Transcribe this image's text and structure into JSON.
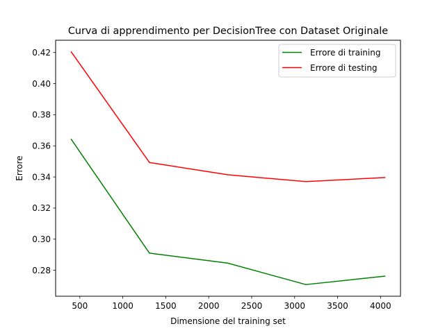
{
  "chart_data": {
    "type": "line",
    "title": "Curva di apprendimento per DecisionTree con Dataset Originale",
    "xlabel": "Dimensione del training set",
    "ylabel": "Errore",
    "x": [
      400,
      1310,
      2220,
      3130,
      4050
    ],
    "series": [
      {
        "name": "Errore di training",
        "color": "#008000",
        "values": [
          0.3642,
          0.291,
          0.2846,
          0.2708,
          0.2762
        ]
      },
      {
        "name": "Errore di testing",
        "color": "#ff0000",
        "values": [
          0.4204,
          0.3493,
          0.3414,
          0.337,
          0.3396
        ]
      }
    ],
    "xlim": [
      218,
      4232
    ],
    "ylim": [
      0.2633,
      0.4279
    ],
    "xticks": [
      500,
      1000,
      1500,
      2000,
      2500,
      3000,
      3500,
      4000
    ],
    "xtick_labels": [
      "500",
      "1000",
      "1500",
      "2000",
      "2500",
      "3000",
      "3500",
      "4000"
    ],
    "yticks": [
      0.28,
      0.3,
      0.32,
      0.34,
      0.36,
      0.38,
      0.4,
      0.42
    ],
    "ytick_labels": [
      "0.28",
      "0.30",
      "0.32",
      "0.34",
      "0.36",
      "0.38",
      "0.40",
      "0.42"
    ],
    "grid": false,
    "legend_position": "top-right"
  }
}
